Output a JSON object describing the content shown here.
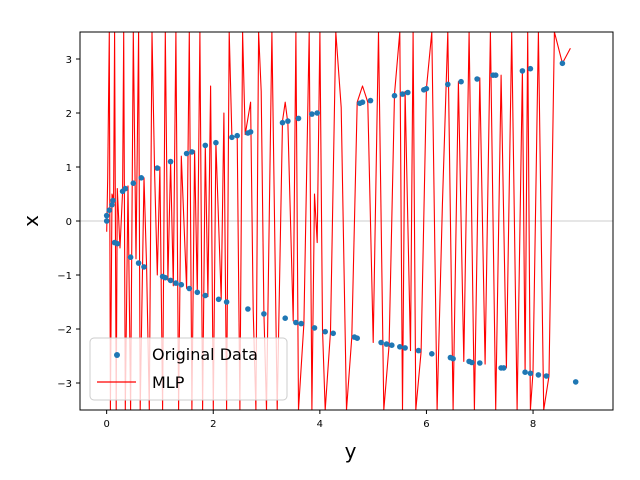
{
  "chart_data": {
    "type": "scatter",
    "xlabel": "y",
    "ylabel": "x",
    "xlim": [
      -0.5,
      9.5
    ],
    "ylim": [
      -3.5,
      3.5
    ],
    "x_ticks": [
      0,
      2,
      4,
      6,
      8
    ],
    "y_ticks": [
      -3,
      -2,
      -1,
      0,
      1,
      2,
      3
    ],
    "grid": false,
    "reference_line": {
      "y": 0,
      "color": "#cccccc"
    },
    "legend_position": "lower-left",
    "colors": {
      "original": "#1f77b4",
      "mlp": "#ff0000"
    },
    "series": [
      {
        "name": "Original Data",
        "kind": "scatter",
        "points": [
          [
            0.0,
            0.0
          ],
          [
            0.0,
            0.1
          ],
          [
            0.05,
            0.2
          ],
          [
            0.1,
            0.3
          ],
          [
            0.12,
            0.38
          ],
          [
            0.15,
            -0.4
          ],
          [
            0.2,
            -0.42
          ],
          [
            0.3,
            0.55
          ],
          [
            0.35,
            0.6
          ],
          [
            0.45,
            -0.67
          ],
          [
            0.5,
            0.7
          ],
          [
            0.6,
            -0.78
          ],
          [
            0.65,
            0.8
          ],
          [
            0.7,
            -0.85
          ],
          [
            0.95,
            0.98
          ],
          [
            1.05,
            -1.03
          ],
          [
            1.1,
            -1.05
          ],
          [
            1.2,
            1.1
          ],
          [
            1.2,
            -1.1
          ],
          [
            1.3,
            -1.15
          ],
          [
            1.4,
            -1.18
          ],
          [
            1.5,
            1.25
          ],
          [
            1.55,
            -1.25
          ],
          [
            1.6,
            1.28
          ],
          [
            1.7,
            -1.32
          ],
          [
            1.85,
            1.4
          ],
          [
            1.85,
            -1.38
          ],
          [
            2.05,
            1.45
          ],
          [
            2.1,
            -1.45
          ],
          [
            2.25,
            -1.5
          ],
          [
            2.35,
            1.55
          ],
          [
            2.45,
            1.58
          ],
          [
            2.65,
            1.63
          ],
          [
            2.7,
            1.65
          ],
          [
            2.65,
            -1.63
          ],
          [
            2.95,
            -1.72
          ],
          [
            3.3,
            1.82
          ],
          [
            3.35,
            -1.8
          ],
          [
            3.4,
            1.85
          ],
          [
            3.55,
            -1.88
          ],
          [
            3.6,
            1.9
          ],
          [
            3.65,
            -1.9
          ],
          [
            3.85,
            1.98
          ],
          [
            3.9,
            -1.98
          ],
          [
            3.95,
            2.0
          ],
          [
            4.1,
            -2.05
          ],
          [
            4.25,
            -2.08
          ],
          [
            4.65,
            -2.15
          ],
          [
            4.7,
            -2.17
          ],
          [
            4.75,
            2.18
          ],
          [
            4.8,
            2.2
          ],
          [
            4.95,
            2.23
          ],
          [
            5.15,
            -2.25
          ],
          [
            5.25,
            -2.28
          ],
          [
            5.35,
            -2.3
          ],
          [
            5.4,
            2.32
          ],
          [
            5.5,
            -2.33
          ],
          [
            5.55,
            2.35
          ],
          [
            5.6,
            -2.35
          ],
          [
            5.65,
            2.38
          ],
          [
            5.85,
            -2.4
          ],
          [
            5.95,
            2.43
          ],
          [
            6.0,
            2.45
          ],
          [
            6.1,
            -2.46
          ],
          [
            6.4,
            2.53
          ],
          [
            6.45,
            -2.53
          ],
          [
            6.5,
            -2.55
          ],
          [
            6.65,
            2.58
          ],
          [
            6.8,
            -2.6
          ],
          [
            6.85,
            -2.62
          ],
          [
            6.95,
            2.63
          ],
          [
            7.0,
            -2.63
          ],
          [
            7.25,
            2.7
          ],
          [
            7.3,
            2.7
          ],
          [
            7.4,
            -2.72
          ],
          [
            7.45,
            -2.72
          ],
          [
            7.8,
            2.78
          ],
          [
            7.85,
            -2.8
          ],
          [
            7.95,
            -2.82
          ],
          [
            7.95,
            2.82
          ],
          [
            8.1,
            -2.85
          ],
          [
            8.25,
            -2.87
          ],
          [
            8.55,
            2.92
          ],
          [
            8.8,
            -2.98
          ]
        ]
      },
      {
        "name": "MLP",
        "kind": "line",
        "points": [
          [
            0.0,
            -0.2
          ],
          [
            0.02,
            0.8
          ],
          [
            0.05,
            3.5
          ],
          [
            0.07,
            -3.5
          ],
          [
            0.1,
            0.5
          ],
          [
            0.13,
            0.4
          ],
          [
            0.15,
            3.5
          ],
          [
            0.18,
            -3.5
          ],
          [
            0.2,
            0.6
          ],
          [
            0.25,
            -0.5
          ],
          [
            0.3,
            0.55
          ],
          [
            0.32,
            3.5
          ],
          [
            0.35,
            -3.5
          ],
          [
            0.4,
            0.65
          ],
          [
            0.45,
            -3.5
          ],
          [
            0.5,
            3.5
          ],
          [
            0.55,
            -0.7
          ],
          [
            0.6,
            3.5
          ],
          [
            0.63,
            -3.5
          ],
          [
            0.7,
            0.8
          ],
          [
            0.75,
            -0.85
          ],
          [
            0.8,
            -3.5
          ],
          [
            0.85,
            3.5
          ],
          [
            0.9,
            0.9
          ],
          [
            0.95,
            -1.0
          ],
          [
            1.0,
            1.0
          ],
          [
            1.05,
            -3.5
          ],
          [
            1.1,
            3.5
          ],
          [
            1.15,
            -1.1
          ],
          [
            1.2,
            1.1
          ],
          [
            1.25,
            -1.2
          ],
          [
            1.3,
            3.5
          ],
          [
            1.35,
            -3.5
          ],
          [
            1.4,
            1.2
          ],
          [
            1.5,
            -1.25
          ],
          [
            1.55,
            3.5
          ],
          [
            1.6,
            -3.5
          ],
          [
            1.65,
            1.3
          ],
          [
            1.7,
            -1.35
          ],
          [
            1.75,
            3.5
          ],
          [
            1.8,
            -3.5
          ],
          [
            1.85,
            1.4
          ],
          [
            1.9,
            -1.4
          ],
          [
            1.95,
            2.5
          ],
          [
            2.0,
            -3.5
          ],
          [
            2.05,
            1.45
          ],
          [
            2.15,
            -1.45
          ],
          [
            2.2,
            2.0
          ],
          [
            2.25,
            -3.5
          ],
          [
            2.3,
            3.5
          ],
          [
            2.35,
            1.55
          ],
          [
            2.45,
            1.58
          ],
          [
            2.5,
            -3.5
          ],
          [
            2.55,
            3.5
          ],
          [
            2.6,
            1.6
          ],
          [
            2.7,
            2.2
          ],
          [
            2.75,
            -1.65
          ],
          [
            2.8,
            -3.5
          ],
          [
            2.85,
            3.5
          ],
          [
            2.9,
            2.4
          ],
          [
            2.95,
            -1.7
          ],
          [
            3.0,
            -3.5
          ],
          [
            3.1,
            3.5
          ],
          [
            3.2,
            -3.5
          ],
          [
            3.3,
            1.85
          ],
          [
            3.35,
            2.2
          ],
          [
            3.4,
            1.8
          ],
          [
            3.5,
            -1.85
          ],
          [
            3.55,
            3.5
          ],
          [
            3.6,
            -3.5
          ],
          [
            3.7,
            -1.9
          ],
          [
            3.8,
            3.5
          ],
          [
            3.85,
            -3.5
          ],
          [
            3.9,
            0.5
          ],
          [
            3.95,
            -0.4
          ],
          [
            4.0,
            3.5
          ],
          [
            4.05,
            -2.0
          ],
          [
            4.1,
            -3.5
          ],
          [
            4.2,
            -2.05
          ],
          [
            4.3,
            3.5
          ],
          [
            4.4,
            2.1
          ],
          [
            4.5,
            -3.5
          ],
          [
            4.6,
            -2.15
          ],
          [
            4.7,
            2.2
          ],
          [
            4.8,
            2.5
          ],
          [
            4.9,
            2.2
          ],
          [
            5.0,
            -2.25
          ],
          [
            5.1,
            3.5
          ],
          [
            5.2,
            -3.5
          ],
          [
            5.3,
            -2.3
          ],
          [
            5.4,
            2.35
          ],
          [
            5.5,
            3.5
          ],
          [
            5.55,
            -3.5
          ],
          [
            5.6,
            2.4
          ],
          [
            5.7,
            -2.4
          ],
          [
            5.75,
            3.5
          ],
          [
            5.8,
            -3.5
          ],
          [
            5.9,
            -2.42
          ],
          [
            6.0,
            2.45
          ],
          [
            6.1,
            3.5
          ],
          [
            6.2,
            -3.5
          ],
          [
            6.3,
            0.3
          ],
          [
            6.4,
            3.5
          ],
          [
            6.5,
            -3.5
          ],
          [
            6.6,
            2.58
          ],
          [
            6.7,
            -2.6
          ],
          [
            6.8,
            3.5
          ],
          [
            6.9,
            -3.5
          ],
          [
            7.0,
            2.65
          ],
          [
            7.1,
            -2.65
          ],
          [
            7.2,
            3.5
          ],
          [
            7.3,
            -3.5
          ],
          [
            7.4,
            2.7
          ],
          [
            7.5,
            -2.72
          ],
          [
            7.6,
            3.5
          ],
          [
            7.7,
            -3.5
          ],
          [
            7.8,
            2.78
          ],
          [
            7.85,
            -2.8
          ],
          [
            7.9,
            3.5
          ],
          [
            7.95,
            -3.5
          ],
          [
            8.0,
            -2.8
          ],
          [
            8.1,
            3.5
          ],
          [
            8.2,
            -3.5
          ],
          [
            8.3,
            -2.87
          ],
          [
            8.4,
            3.5
          ],
          [
            8.55,
            2.92
          ],
          [
            8.7,
            3.2
          ]
        ]
      }
    ]
  }
}
